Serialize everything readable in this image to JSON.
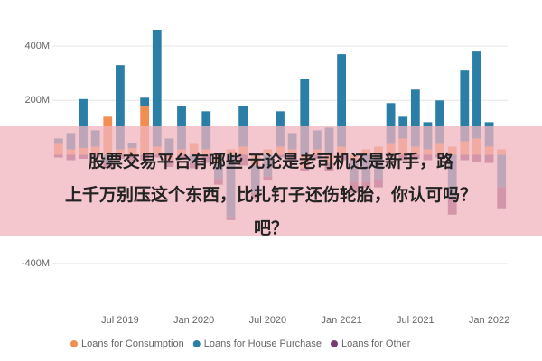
{
  "chart_data": {
    "type": "stacked_bar",
    "categories": [
      null,
      null,
      null,
      null,
      null,
      "Jul 2019",
      null,
      null,
      null,
      null,
      null,
      "Jan 2020",
      null,
      null,
      null,
      null,
      null,
      "Jul 2020",
      null,
      null,
      null,
      null,
      null,
      "Jan 2021",
      null,
      null,
      null,
      null,
      null,
      "Jul 2021",
      null,
      null,
      null,
      null,
      null,
      "Jan 2022",
      null
    ],
    "series": [
      {
        "name": "Loans for Consumption",
        "color": "#f28e52",
        "values": [
          40,
          20,
          25,
          30,
          140,
          20,
          25,
          180,
          30,
          -20,
          20,
          40,
          20,
          -30,
          20,
          30,
          -40,
          20,
          30,
          20,
          -50,
          20,
          -30,
          30,
          -20,
          20,
          30,
          40,
          60,
          30,
          20,
          40,
          30,
          50,
          60,
          30,
          20
        ]
      },
      {
        "name": "Loans for House Purchase",
        "color": "#2b7ea6",
        "values": [
          20,
          60,
          180,
          60,
          -30,
          310,
          20,
          30,
          430,
          60,
          160,
          -30,
          140,
          -60,
          -230,
          150,
          -100,
          -80,
          130,
          60,
          280,
          70,
          100,
          340,
          -80,
          -100,
          -90,
          150,
          80,
          210,
          100,
          160,
          -160,
          260,
          320,
          90,
          -120
        ]
      },
      {
        "name": "Loans for Other",
        "color": "#7a3b6c",
        "values": [
          -10,
          -20,
          -15,
          -10,
          -20,
          -15,
          -30,
          -20,
          -10,
          -25,
          -15,
          -20,
          -30,
          -20,
          -10,
          -40,
          -20,
          -15,
          -10,
          -20,
          -10,
          -15,
          -30,
          -20,
          -40,
          -20,
          -30,
          -10,
          -20,
          -15,
          -20,
          -10,
          -60,
          -20,
          -25,
          -30,
          -80
        ]
      }
    ],
    "ylim": [
      -460,
      470
    ],
    "yticks": [
      {
        "value": 400,
        "label": "400M"
      },
      {
        "value": 200,
        "label": "200M"
      },
      {
        "value": -400,
        "label": "-400M"
      }
    ],
    "grid": true
  },
  "overlay": {
    "lines": [
      "股票交易平台有哪些 无论是老司机还是新手，路",
      "上千万别压这个东西，比扎钉子还伤轮胎，你认可吗？",
      "吧？"
    ]
  }
}
